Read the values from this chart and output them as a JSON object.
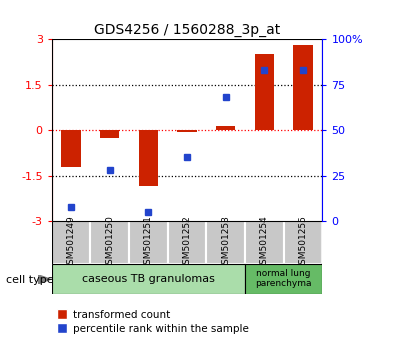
{
  "title": "GDS4256 / 1560288_3p_at",
  "samples": [
    "GSM501249",
    "GSM501250",
    "GSM501251",
    "GSM501252",
    "GSM501253",
    "GSM501254",
    "GSM501255"
  ],
  "transformed_count": [
    -1.2,
    -0.25,
    -1.85,
    -0.05,
    0.15,
    2.5,
    2.8
  ],
  "percentile_rank": [
    8,
    28,
    5,
    35,
    68,
    83,
    83
  ],
  "bar_color": "#cc2200",
  "square_color": "#2244cc",
  "ylim_left": [
    -3,
    3
  ],
  "ylim_right": [
    0,
    100
  ],
  "yticks_left": [
    -3,
    -1.5,
    0,
    1.5,
    3
  ],
  "yticks_right": [
    0,
    25,
    50,
    75,
    100
  ],
  "ytick_labels_right": [
    "0",
    "25",
    "50",
    "75",
    "100%"
  ],
  "hline_positions": [
    -1.5,
    0,
    1.5
  ],
  "hline_colors": [
    "black",
    "red",
    "black"
  ],
  "plot_bg_color": "#ffffff",
  "sample_box_color": "#c8c8c8",
  "cell_type_box_color1": "#aaddaa",
  "cell_type_box_color2": "#66bb66",
  "border_color": "#000000"
}
